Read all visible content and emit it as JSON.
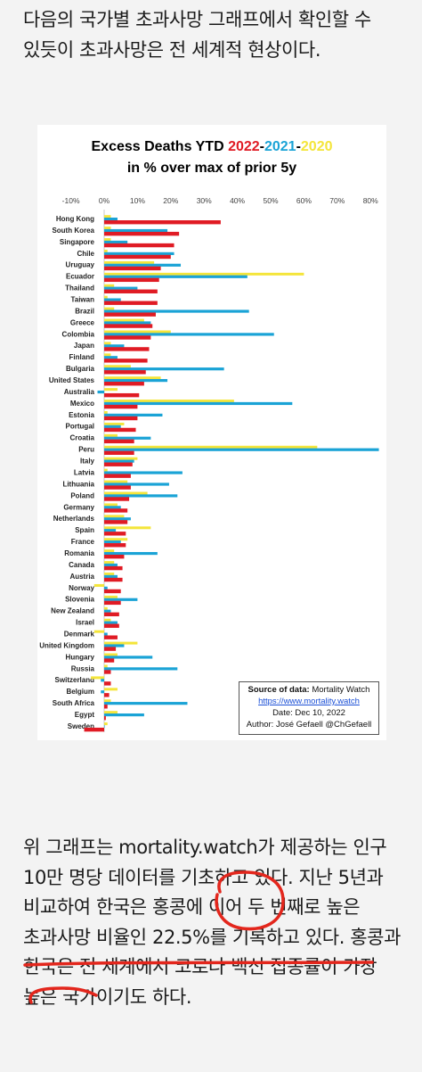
{
  "article": {
    "paragraph1": "다음의 국가별 초과사망 그래프에서 확인할 수 있듯이 초과사망은 전 세계적 현상이다.",
    "paragraph2": "위 그래프는 mortality.watch가 제공하는 인구 10만 명당 데이터를 기초하고 있다. 지난 5년과 비교하여 한국은 홍콩에 이어 두 번째로 높은 초과사망 비율인 22.5%를 기록하고 있다. 홍콩과 한국은 전 세계에서 코로나 백신 접종률이 가장 높은 국가이기도 하다."
  },
  "colors": {
    "y2022": "#e01b24",
    "y2021": "#1aa3d6",
    "y2020": "#f4e53a",
    "annotation": "#e3261c"
  },
  "chart_data": {
    "type": "bar",
    "orientation": "horizontal",
    "title": {
      "prefix": "Excess Deaths YTD ",
      "year1": "2022",
      "sep1": "-",
      "year2": "2021",
      "sep2": "-",
      "year3": "2020",
      "line2": "in % over max of prior 5y"
    },
    "x_ticks": [
      "-10%",
      "0%",
      "10%",
      "20%",
      "30%",
      "40%",
      "50%",
      "60%",
      "70%",
      "80%"
    ],
    "xlim": [
      -10,
      85
    ],
    "categories": [
      "Hong Kong",
      "South Korea",
      "Singapore",
      "Chile",
      "Uruguay",
      "Ecuador",
      "Thailand",
      "Taiwan",
      "Brazil",
      "Greece",
      "Colombia",
      "Japan",
      "Finland",
      "Bulgaria",
      "United States",
      "Australia",
      "Mexico",
      "Estonia",
      "Portugal",
      "Croatia",
      "Peru",
      "Italy",
      "Latvia",
      "Lithuania",
      "Poland",
      "Germany",
      "Netherlands",
      "Spain",
      "France",
      "Romania",
      "Canada",
      "Austria",
      "Norway",
      "Slovenia",
      "New Zealand",
      "Israel",
      "Denmark",
      "United Kingdom",
      "Hungary",
      "Russia",
      "Switzerland",
      "Belgium",
      "South Africa",
      "Egypt",
      "Sweden"
    ],
    "series": [
      {
        "name": "2022",
        "color": "#e01b24",
        "values": [
          35,
          22.5,
          21,
          20,
          17,
          16.5,
          16,
          16,
          15.5,
          14.5,
          14,
          13.5,
          13,
          12.5,
          12,
          10.5,
          10,
          10,
          9.5,
          9,
          9,
          8.5,
          8,
          8,
          7.5,
          7,
          7,
          6.5,
          6.5,
          6,
          5.5,
          5.5,
          5,
          5,
          4.5,
          4.5,
          4,
          3.5,
          3,
          2,
          2,
          1.5,
          1,
          0.5,
          -6
        ]
      },
      {
        "name": "2021",
        "color": "#1aa3d6",
        "values": [
          4,
          19,
          7,
          21,
          23,
          43,
          10,
          5,
          43.5,
          14,
          51,
          6,
          4,
          36,
          19,
          -2,
          56.5,
          17.5,
          5,
          14,
          82.5,
          9,
          23.5,
          19.5,
          22,
          5,
          8,
          3.5,
          5,
          16,
          4,
          4,
          1,
          10,
          2,
          4,
          1,
          6,
          14.5,
          22,
          -1,
          -1,
          25,
          12,
          0
        ]
      },
      {
        "name": "2020",
        "color": "#f4e53a",
        "values": [
          2,
          2,
          2,
          1,
          15,
          60,
          3,
          1,
          3,
          12,
          20,
          2,
          2,
          8,
          17,
          4,
          39,
          1,
          6,
          4,
          64,
          10,
          1,
          7,
          13,
          4,
          6,
          14,
          7,
          3,
          3,
          3,
          -3,
          4,
          1,
          2,
          -3,
          10,
          4,
          1,
          -4,
          4,
          2,
          4,
          1
        ]
      }
    ],
    "legend_note": "bar color = year: 2022 red, 2021 blue, 2020 yellow"
  },
  "source": {
    "label": "Source of data:",
    "name": " Mortality Watch",
    "url": "https://www.mortality.watch",
    "date": "Date: Dec 10, 2022",
    "author": "Author: José Gefaell @ChGefaell"
  }
}
